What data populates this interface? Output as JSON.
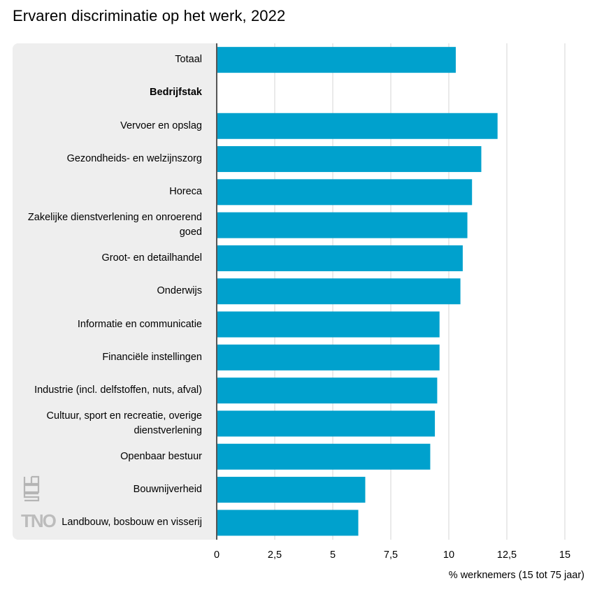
{
  "title": "Ervaren discriminatie op het werk, 2022",
  "logos": {
    "cbs": "cbs",
    "tno": "TNO"
  },
  "colors": {
    "bar": "#00a1cd",
    "grid": "#d5d5d5",
    "axis": "#555555",
    "panel": "#eeeeee"
  },
  "chart_data": {
    "type": "bar",
    "orientation": "horizontal",
    "title": "Ervaren discriminatie op het werk, 2022",
    "xlabel": "% werknemers (15 tot 75 jaar)",
    "ylabel": "",
    "xlim": [
      0,
      15
    ],
    "xticks": [
      0,
      2.5,
      5,
      7.5,
      10,
      12.5,
      15
    ],
    "xtick_labels": [
      "0",
      "2,5",
      "5",
      "7,5",
      "10",
      "12,5",
      "15"
    ],
    "grid": true,
    "categories": [
      {
        "label": "Totaal",
        "value": 10.3,
        "header": false
      },
      {
        "label": "Bedrijfstak",
        "value": null,
        "header": true
      },
      {
        "label": "Vervoer en opslag",
        "value": 12.1,
        "header": false
      },
      {
        "label": "Gezondheids- en welzijnszorg",
        "value": 11.4,
        "header": false
      },
      {
        "label": "Horeca",
        "value": 11.0,
        "header": false
      },
      {
        "label": "Zakelijke dienstverlening en onroerend goed",
        "value": 10.8,
        "header": false
      },
      {
        "label": "Groot- en detailhandel",
        "value": 10.6,
        "header": false
      },
      {
        "label": "Onderwijs",
        "value": 10.5,
        "header": false
      },
      {
        "label": "Informatie en communicatie",
        "value": 9.6,
        "header": false
      },
      {
        "label": "Financiële instellingen",
        "value": 9.6,
        "header": false
      },
      {
        "label": "Industrie (incl. delfstoffen, nuts, afval)",
        "value": 9.5,
        "header": false
      },
      {
        "label": "Cultuur, sport en recreatie, overige dienstverlening",
        "value": 9.4,
        "header": false
      },
      {
        "label": "Openbaar bestuur",
        "value": 9.2,
        "header": false
      },
      {
        "label": "Bouwnijverheid",
        "value": 6.4,
        "header": false
      },
      {
        "label": "Landbouw, bosbouw en visserij",
        "value": 6.1,
        "header": false
      }
    ]
  }
}
